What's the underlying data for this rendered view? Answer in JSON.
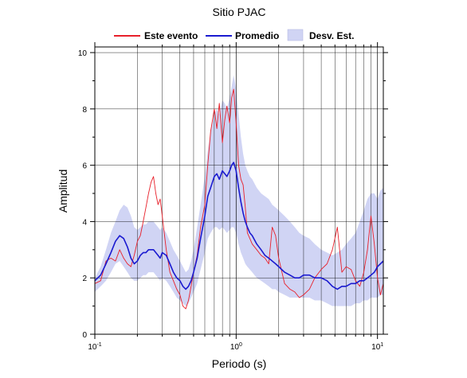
{
  "chart_data": {
    "type": "line",
    "title": "Sitio PJAC",
    "xlabel": "Periodo (s)",
    "ylabel": "Amplitud",
    "x_scale": "log",
    "xlim": [
      0.1,
      11
    ],
    "ylim": [
      0,
      10.2
    ],
    "x_ticks": [
      {
        "value": 0.1,
        "base": "10",
        "exp": "-1"
      },
      {
        "value": 1,
        "base": "10",
        "exp": "0"
      },
      {
        "value": 10,
        "base": "10",
        "exp": "1"
      }
    ],
    "y_ticks": [
      0,
      2,
      4,
      6,
      8,
      10
    ],
    "y_tick_labels": [
      "0",
      "2",
      "4",
      "6",
      "8",
      "10"
    ],
    "grid": "vertical log grid, minor y ticks",
    "legend": {
      "position": "top",
      "entries": [
        {
          "label": "Este evento",
          "type": "line",
          "color": "#e8202a"
        },
        {
          "label": "Promedio",
          "type": "line",
          "color": "#1a1ad0"
        },
        {
          "label": "Desv. Est.",
          "type": "band",
          "color": "#d0d4f4"
        }
      ]
    },
    "series": [
      {
        "name": "Este evento",
        "color": "#e8202a",
        "x": [
          0.1,
          0.11,
          0.12,
          0.13,
          0.14,
          0.15,
          0.16,
          0.17,
          0.18,
          0.19,
          0.2,
          0.21,
          0.22,
          0.23,
          0.24,
          0.25,
          0.26,
          0.27,
          0.28,
          0.29,
          0.3,
          0.32,
          0.34,
          0.36,
          0.38,
          0.4,
          0.42,
          0.44,
          0.46,
          0.48,
          0.5,
          0.53,
          0.56,
          0.6,
          0.63,
          0.66,
          0.7,
          0.73,
          0.76,
          0.8,
          0.83,
          0.86,
          0.9,
          0.93,
          0.96,
          1.0,
          1.04,
          1.08,
          1.12,
          1.16,
          1.2,
          1.25,
          1.3,
          1.4,
          1.5,
          1.6,
          1.7,
          1.8,
          1.9,
          2.0,
          2.2,
          2.4,
          2.6,
          2.8,
          3.0,
          3.3,
          3.6,
          4.0,
          4.4,
          4.8,
          5.2,
          5.6,
          6.0,
          6.5,
          7.0,
          7.5,
          8.0,
          8.5,
          9.0,
          9.5,
          10.0,
          10.5,
          11.0
        ],
        "values": [
          1.8,
          1.9,
          2.6,
          2.7,
          2.6,
          3.0,
          2.7,
          2.5,
          2.4,
          2.8,
          3.3,
          3.5,
          4.0,
          4.5,
          5.0,
          5.4,
          5.6,
          5.0,
          4.6,
          4.8,
          4.2,
          3.0,
          2.2,
          1.9,
          1.6,
          1.4,
          1.0,
          0.9,
          1.2,
          1.7,
          2.2,
          2.8,
          3.8,
          4.6,
          6.0,
          7.2,
          8.0,
          7.3,
          8.2,
          6.8,
          7.6,
          8.1,
          7.5,
          8.4,
          8.7,
          7.5,
          6.0,
          5.5,
          5.3,
          4.5,
          3.6,
          3.4,
          3.2,
          3.0,
          2.8,
          2.7,
          2.5,
          3.8,
          3.5,
          2.7,
          1.8,
          1.6,
          1.5,
          1.3,
          1.4,
          1.6,
          2.0,
          2.3,
          2.5,
          3.0,
          3.8,
          2.2,
          2.4,
          2.3,
          1.9,
          1.7,
          2.2,
          3.0,
          4.2,
          3.2,
          2.0,
          1.4,
          1.8
        ]
      },
      {
        "name": "Promedio",
        "color": "#1a1ad0",
        "x": [
          0.1,
          0.11,
          0.12,
          0.13,
          0.14,
          0.15,
          0.16,
          0.17,
          0.18,
          0.19,
          0.2,
          0.21,
          0.22,
          0.23,
          0.24,
          0.25,
          0.26,
          0.27,
          0.28,
          0.29,
          0.3,
          0.32,
          0.34,
          0.36,
          0.38,
          0.4,
          0.42,
          0.44,
          0.46,
          0.48,
          0.5,
          0.53,
          0.56,
          0.6,
          0.63,
          0.66,
          0.7,
          0.73,
          0.76,
          0.8,
          0.83,
          0.86,
          0.9,
          0.93,
          0.96,
          1.0,
          1.04,
          1.08,
          1.12,
          1.16,
          1.2,
          1.25,
          1.3,
          1.4,
          1.5,
          1.6,
          1.7,
          1.8,
          1.9,
          2.0,
          2.2,
          2.4,
          2.6,
          2.8,
          3.0,
          3.3,
          3.6,
          4.0,
          4.4,
          4.8,
          5.2,
          5.6,
          6.0,
          6.5,
          7.0,
          7.5,
          8.0,
          8.5,
          9.0,
          9.5,
          10.0,
          10.5,
          11.0
        ],
        "values": [
          1.9,
          2.1,
          2.5,
          2.9,
          3.3,
          3.5,
          3.4,
          3.1,
          2.7,
          2.5,
          2.6,
          2.8,
          2.9,
          2.9,
          3.0,
          3.0,
          3.0,
          2.9,
          2.8,
          2.7,
          2.9,
          2.8,
          2.5,
          2.2,
          2.0,
          1.9,
          1.7,
          1.6,
          1.7,
          1.9,
          2.2,
          2.7,
          3.4,
          4.2,
          4.9,
          5.2,
          5.6,
          5.7,
          5.5,
          5.8,
          5.7,
          5.6,
          5.8,
          6.0,
          6.1,
          5.8,
          5.2,
          4.7,
          4.3,
          4.0,
          3.8,
          3.6,
          3.5,
          3.2,
          3.0,
          2.8,
          2.7,
          2.6,
          2.5,
          2.4,
          2.2,
          2.1,
          2.0,
          2.0,
          2.1,
          2.1,
          2.0,
          2.0,
          1.9,
          1.7,
          1.6,
          1.7,
          1.7,
          1.8,
          1.8,
          1.9,
          1.9,
          2.0,
          2.1,
          2.2,
          2.4,
          2.5,
          2.6
        ]
      }
    ],
    "band": {
      "name": "Desv. Est.",
      "color": "#d0d4f4",
      "x": [
        0.1,
        0.11,
        0.12,
        0.13,
        0.14,
        0.15,
        0.16,
        0.17,
        0.18,
        0.19,
        0.2,
        0.21,
        0.22,
        0.23,
        0.24,
        0.25,
        0.26,
        0.27,
        0.28,
        0.29,
        0.3,
        0.32,
        0.34,
        0.36,
        0.38,
        0.4,
        0.42,
        0.44,
        0.46,
        0.48,
        0.5,
        0.53,
        0.56,
        0.6,
        0.63,
        0.66,
        0.7,
        0.73,
        0.76,
        0.8,
        0.83,
        0.86,
        0.9,
        0.93,
        0.96,
        1.0,
        1.04,
        1.08,
        1.12,
        1.16,
        1.2,
        1.25,
        1.3,
        1.4,
        1.5,
        1.6,
        1.7,
        1.8,
        1.9,
        2.0,
        2.2,
        2.4,
        2.6,
        2.8,
        3.0,
        3.3,
        3.6,
        4.0,
        4.4,
        4.8,
        5.2,
        5.6,
        6.0,
        6.5,
        7.0,
        7.5,
        8.0,
        8.5,
        9.0,
        9.5,
        10.0,
        10.5,
        11.0
      ],
      "upper": [
        2.0,
        2.4,
        3.0,
        3.6,
        4.0,
        4.4,
        4.6,
        4.5,
        4.2,
        3.8,
        3.7,
        3.8,
        3.9,
        3.9,
        4.0,
        4.0,
        4.0,
        3.9,
        3.8,
        3.7,
        3.8,
        3.6,
        3.3,
        3.0,
        2.8,
        2.6,
        2.4,
        2.2,
        2.3,
        2.6,
        3.0,
        3.8,
        4.6,
        5.6,
        6.5,
        7.2,
        7.8,
        8.0,
        7.8,
        8.3,
        8.2,
        8.0,
        8.4,
        8.8,
        9.2,
        8.7,
        7.8,
        7.0,
        6.4,
        6.0,
        5.8,
        5.6,
        5.5,
        5.2,
        5.0,
        4.9,
        4.8,
        4.6,
        4.5,
        4.4,
        4.2,
        4.0,
        3.8,
        3.6,
        3.5,
        3.4,
        3.2,
        3.0,
        2.9,
        2.8,
        2.9,
        3.0,
        3.2,
        3.4,
        3.6,
        4.0,
        4.4,
        4.8,
        5.0,
        5.0,
        4.8,
        5.1,
        5.2
      ],
      "lower": [
        1.5,
        1.7,
        1.9,
        2.2,
        2.5,
        2.6,
        2.4,
        2.2,
        2.0,
        1.9,
        1.9,
        2.0,
        2.1,
        2.1,
        2.2,
        2.2,
        2.2,
        2.1,
        2.0,
        1.9,
        2.0,
        1.9,
        1.7,
        1.5,
        1.3,
        1.2,
        1.1,
        1.0,
        1.1,
        1.3,
        1.5,
        1.8,
        2.3,
        2.9,
        3.4,
        3.6,
        3.8,
        3.8,
        3.7,
        3.8,
        3.7,
        3.6,
        3.7,
        3.8,
        3.8,
        3.6,
        3.2,
        2.9,
        2.7,
        2.5,
        2.4,
        2.3,
        2.2,
        2.0,
        1.9,
        1.8,
        1.7,
        1.6,
        1.6,
        1.5,
        1.4,
        1.3,
        1.3,
        1.3,
        1.3,
        1.3,
        1.2,
        1.2,
        1.1,
        1.0,
        1.0,
        1.0,
        1.0,
        1.0,
        1.1,
        1.1,
        1.2,
        1.2,
        1.3,
        1.3,
        1.3,
        1.4,
        1.4
      ]
    }
  }
}
